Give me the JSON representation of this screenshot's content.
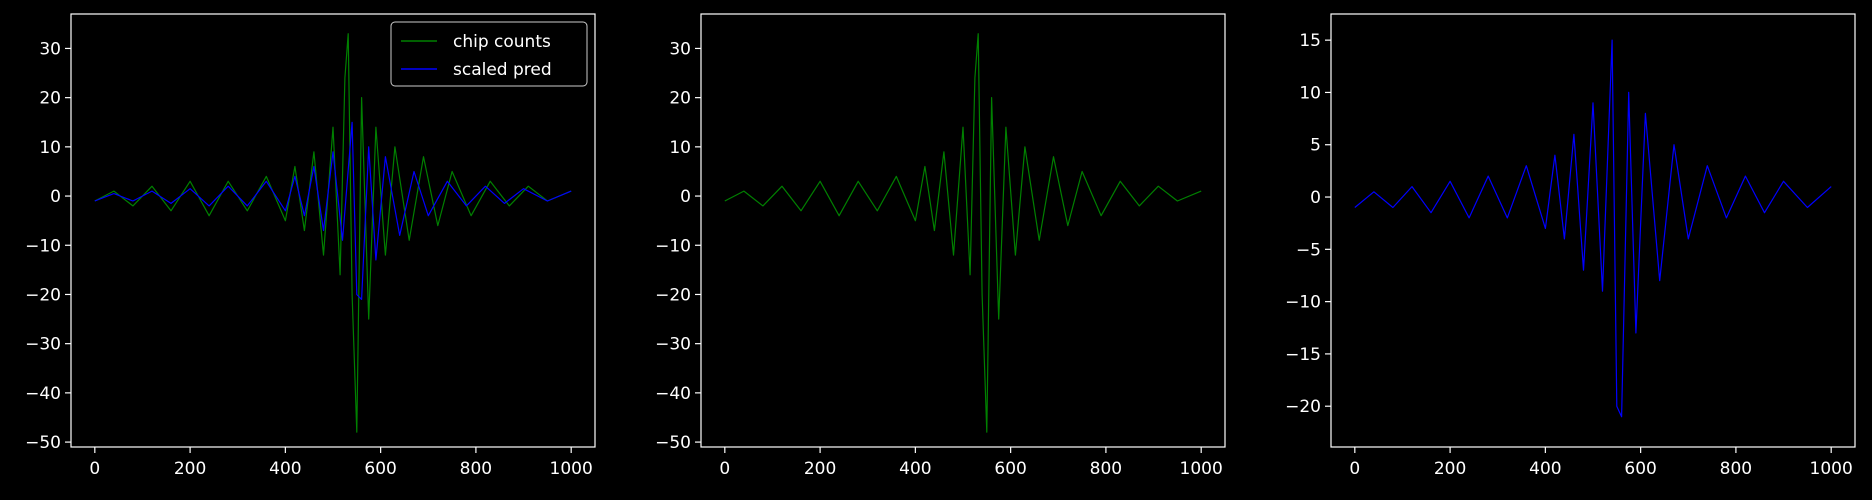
{
  "chart_data": [
    {
      "type": "line",
      "title": "",
      "xlabel": "",
      "ylabel": "",
      "xlim": [
        -50,
        1050
      ],
      "ylim": [
        -51,
        37
      ],
      "xticks": [
        0,
        200,
        400,
        600,
        800,
        1000
      ],
      "yticks": [
        -50,
        -40,
        -30,
        -20,
        -10,
        0,
        10,
        20,
        30
      ],
      "grid": false,
      "legend": {
        "position": "top-right",
        "entries": [
          "chip counts",
          "scaled pred"
        ]
      },
      "series": [
        {
          "name": "chip counts",
          "color": "#008000",
          "points": [
            [
              0,
              -1
            ],
            [
              40,
              1
            ],
            [
              80,
              -2
            ],
            [
              120,
              2
            ],
            [
              160,
              -3
            ],
            [
              200,
              3
            ],
            [
              240,
              -4
            ],
            [
              280,
              3
            ],
            [
              320,
              -3
            ],
            [
              360,
              4
            ],
            [
              400,
              -5
            ],
            [
              420,
              6
            ],
            [
              440,
              -7
            ],
            [
              460,
              9
            ],
            [
              480,
              -12
            ],
            [
              500,
              14
            ],
            [
              515,
              -16
            ],
            [
              525,
              24
            ],
            [
              532,
              33
            ],
            [
              540,
              -20
            ],
            [
              550,
              -48
            ],
            [
              560,
              20
            ],
            [
              575,
              -25
            ],
            [
              590,
              14
            ],
            [
              610,
              -12
            ],
            [
              630,
              10
            ],
            [
              660,
              -9
            ],
            [
              690,
              8
            ],
            [
              720,
              -6
            ],
            [
              750,
              5
            ],
            [
              790,
              -4
            ],
            [
              830,
              3
            ],
            [
              870,
              -2
            ],
            [
              910,
              2
            ],
            [
              950,
              -1
            ],
            [
              1000,
              1
            ]
          ]
        },
        {
          "name": "scaled pred",
          "color": "#0000ff",
          "points": [
            [
              0,
              -1
            ],
            [
              40,
              0.5
            ],
            [
              80,
              -1
            ],
            [
              120,
              1
            ],
            [
              160,
              -1.5
            ],
            [
              200,
              1.5
            ],
            [
              240,
              -2
            ],
            [
              280,
              2
            ],
            [
              320,
              -2
            ],
            [
              360,
              3
            ],
            [
              400,
              -3
            ],
            [
              420,
              4
            ],
            [
              440,
              -4
            ],
            [
              460,
              6
            ],
            [
              480,
              -7
            ],
            [
              500,
              9
            ],
            [
              520,
              -9
            ],
            [
              540,
              15
            ],
            [
              550,
              -20
            ],
            [
              560,
              -21
            ],
            [
              575,
              10
            ],
            [
              590,
              -13
            ],
            [
              610,
              8
            ],
            [
              640,
              -8
            ],
            [
              670,
              5
            ],
            [
              700,
              -4
            ],
            [
              740,
              3
            ],
            [
              780,
              -2
            ],
            [
              820,
              2
            ],
            [
              860,
              -1.5
            ],
            [
              900,
              1.5
            ],
            [
              950,
              -1
            ],
            [
              1000,
              1
            ]
          ]
        }
      ]
    },
    {
      "type": "line",
      "title": "",
      "xlabel": "",
      "ylabel": "",
      "xlim": [
        -50,
        1050
      ],
      "ylim": [
        -51,
        37
      ],
      "xticks": [
        0,
        200,
        400,
        600,
        800,
        1000
      ],
      "yticks": [
        -50,
        -40,
        -30,
        -20,
        -10,
        0,
        10,
        20,
        30
      ],
      "grid": false,
      "legend": null,
      "series": [
        {
          "name": "",
          "color": "#008000",
          "points": [
            [
              0,
              -1
            ],
            [
              40,
              1
            ],
            [
              80,
              -2
            ],
            [
              120,
              2
            ],
            [
              160,
              -3
            ],
            [
              200,
              3
            ],
            [
              240,
              -4
            ],
            [
              280,
              3
            ],
            [
              320,
              -3
            ],
            [
              360,
              4
            ],
            [
              400,
              -5
            ],
            [
              420,
              6
            ],
            [
              440,
              -7
            ],
            [
              460,
              9
            ],
            [
              480,
              -12
            ],
            [
              500,
              14
            ],
            [
              515,
              -16
            ],
            [
              525,
              24
            ],
            [
              532,
              33
            ],
            [
              540,
              -20
            ],
            [
              550,
              -48
            ],
            [
              560,
              20
            ],
            [
              575,
              -25
            ],
            [
              590,
              14
            ],
            [
              610,
              -12
            ],
            [
              630,
              10
            ],
            [
              660,
              -9
            ],
            [
              690,
              8
            ],
            [
              720,
              -6
            ],
            [
              750,
              5
            ],
            [
              790,
              -4
            ],
            [
              830,
              3
            ],
            [
              870,
              -2
            ],
            [
              910,
              2
            ],
            [
              950,
              -1
            ],
            [
              1000,
              1
            ]
          ]
        }
      ]
    },
    {
      "type": "line",
      "title": "",
      "xlabel": "",
      "ylabel": "",
      "xlim": [
        -50,
        1050
      ],
      "ylim": [
        -23.9,
        17.5
      ],
      "xticks": [
        0,
        200,
        400,
        600,
        800,
        1000
      ],
      "yticks": [
        -20,
        -15,
        -10,
        -5,
        0,
        5,
        10,
        15
      ],
      "grid": false,
      "legend": null,
      "series": [
        {
          "name": "",
          "color": "#0000ff",
          "points": [
            [
              0,
              -1
            ],
            [
              40,
              0.5
            ],
            [
              80,
              -1
            ],
            [
              120,
              1
            ],
            [
              160,
              -1.5
            ],
            [
              200,
              1.5
            ],
            [
              240,
              -2
            ],
            [
              280,
              2
            ],
            [
              320,
              -2
            ],
            [
              360,
              3
            ],
            [
              400,
              -3
            ],
            [
              420,
              4
            ],
            [
              440,
              -4
            ],
            [
              460,
              6
            ],
            [
              480,
              -7
            ],
            [
              500,
              9
            ],
            [
              520,
              -9
            ],
            [
              540,
              15
            ],
            [
              550,
              -20
            ],
            [
              560,
              -21
            ],
            [
              575,
              10
            ],
            [
              590,
              -13
            ],
            [
              610,
              8
            ],
            [
              640,
              -8
            ],
            [
              670,
              5
            ],
            [
              700,
              -4
            ],
            [
              740,
              3
            ],
            [
              780,
              -2
            ],
            [
              820,
              2
            ],
            [
              860,
              -1.5
            ],
            [
              900,
              1.5
            ],
            [
              950,
              -1
            ],
            [
              1000,
              1
            ]
          ]
        }
      ]
    }
  ]
}
